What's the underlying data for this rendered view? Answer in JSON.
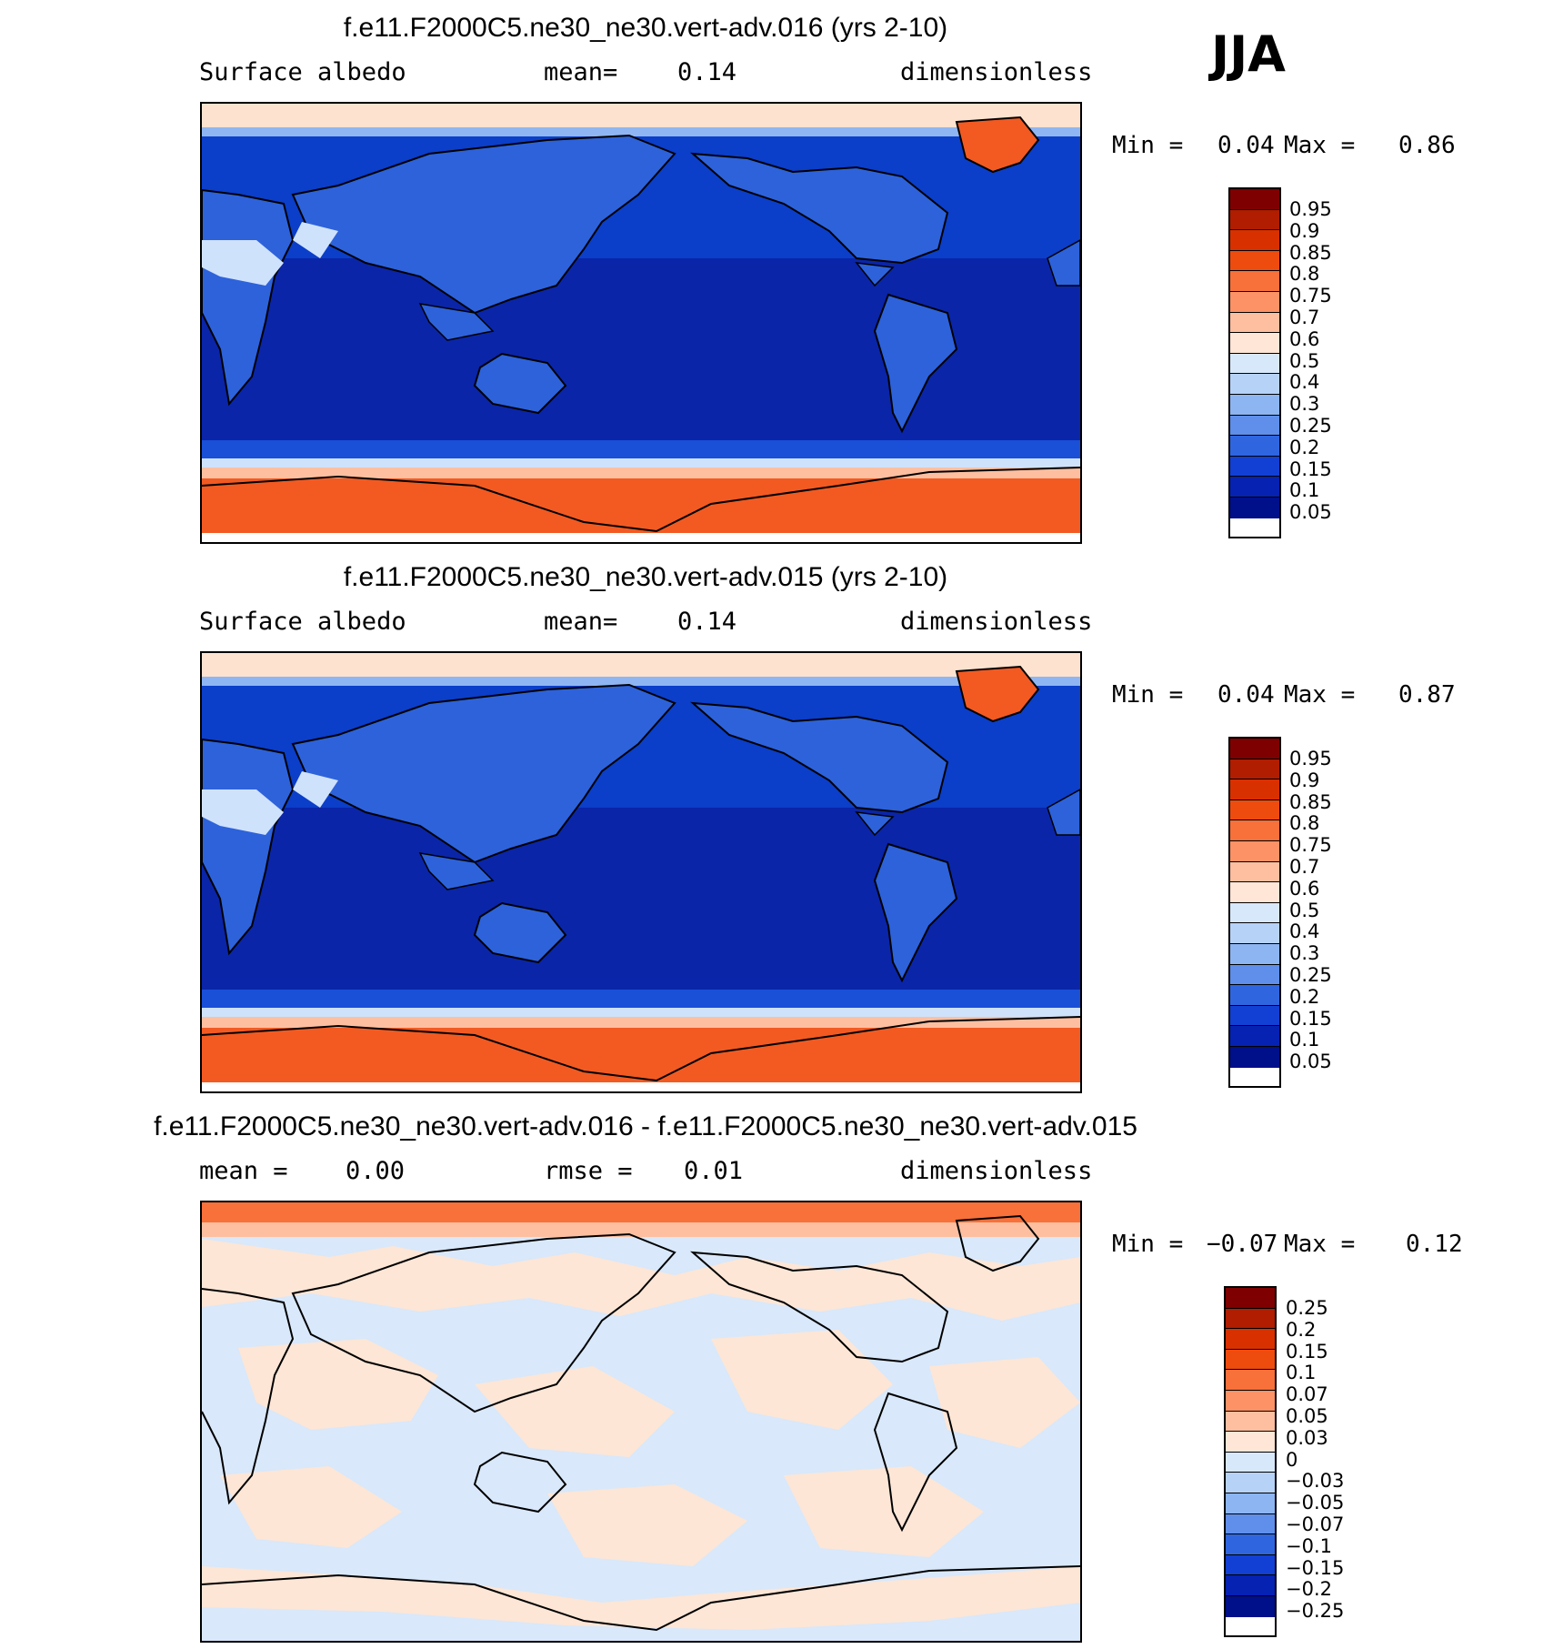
{
  "season": "JJA",
  "panels": [
    {
      "title": "f.e11.F2000C5.ne30_ne30.vert-adv.016 (yrs 2-10)",
      "left_label": "Surface albedo",
      "mid_label": "mean=",
      "mid_value": "0.14",
      "right_label": "dimensionless",
      "min_label": "Min =",
      "min_value": "0.04",
      "max_label": "Max =",
      "max_value": "0.86",
      "colorbar_labels": [
        "0.95",
        "0.9",
        "0.85",
        "0.8",
        "0.75",
        "0.7",
        "0.6",
        "0.5",
        "0.4",
        "0.3",
        "0.25",
        "0.2",
        "0.15",
        "0.1",
        "0.05"
      ]
    },
    {
      "title": "f.e11.F2000C5.ne30_ne30.vert-adv.015 (yrs 2-10)",
      "left_label": "Surface albedo",
      "mid_label": "mean=",
      "mid_value": "0.14",
      "right_label": "dimensionless",
      "min_label": "Min =",
      "min_value": "0.04",
      "max_label": "Max =",
      "max_value": "0.87",
      "colorbar_labels": [
        "0.95",
        "0.9",
        "0.85",
        "0.8",
        "0.75",
        "0.7",
        "0.6",
        "0.5",
        "0.4",
        "0.3",
        "0.25",
        "0.2",
        "0.15",
        "0.1",
        "0.05"
      ]
    },
    {
      "title": "f.e11.F2000C5.ne30_ne30.vert-adv.016 - f.e11.F2000C5.ne30_ne30.vert-adv.015",
      "left_label": "mean =",
      "left_value": "0.00",
      "mid_label": "rmse =",
      "mid_value": "0.01",
      "right_label": "dimensionless",
      "min_label": "Min =",
      "min_value": "−0.07",
      "max_label": "Max =",
      "max_value": "0.12",
      "colorbar_labels": [
        "0.25",
        "0.2",
        "0.15",
        "0.1",
        "0.07",
        "0.05",
        "0.03",
        "0",
        "−0.03",
        "−0.05",
        "−0.07",
        "−0.1",
        "−0.15",
        "−0.2",
        "−0.25"
      ]
    }
  ],
  "colors": {
    "scale": [
      "#7f0000",
      "#b01d00",
      "#d93000",
      "#ee4b0f",
      "#f8703a",
      "#fc9266",
      "#fdbfa0",
      "#ffe6d6",
      "#d8e8fb",
      "#b7d2f7",
      "#8db5f1",
      "#5f8fea",
      "#2f66e0",
      "#1240d4",
      "#0522b2",
      "#000f8a"
    ],
    "ocean_deep": "#0a25a8",
    "ocean_mid": "#0b3ec9",
    "land": "#2d62db",
    "ice": "#f25a22",
    "diff_pos": "#fde6d6",
    "diff_neg": "#d9e8fa"
  }
}
